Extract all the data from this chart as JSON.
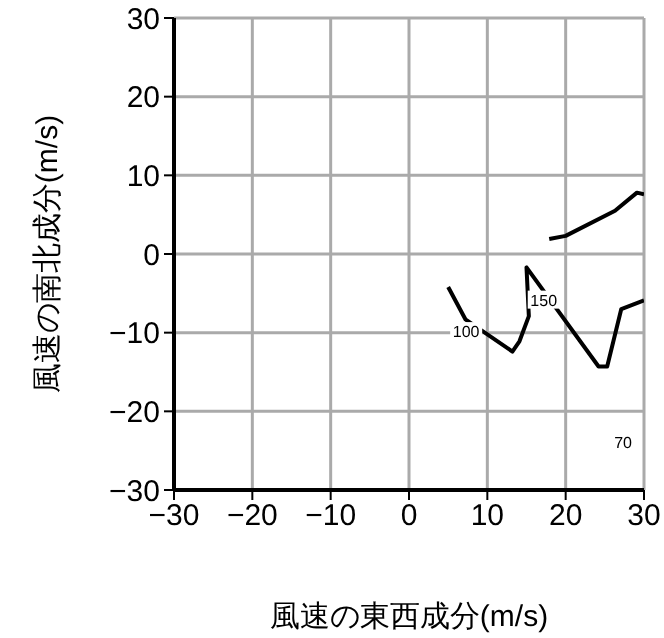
{
  "chart_data": {
    "type": "line",
    "xlabel": "風速の東西成分(m/s)",
    "ylabel": "風速の南北成分(m/s)",
    "xlim": [
      -30,
      30
    ],
    "ylim": [
      -30,
      30
    ],
    "xticks": [
      -30,
      -20,
      -10,
      0,
      10,
      20,
      30
    ],
    "yticks": [
      -30,
      -20,
      -10,
      0,
      10,
      20,
      30
    ],
    "grid": true,
    "line_style": "solid",
    "marker": "none",
    "series": [
      {
        "color": "#000000",
        "x": [
          17.9,
          20,
          26.3,
          29.1,
          30
        ],
        "values": [
          1.9,
          2.3,
          5.5,
          7.8,
          7.6
        ]
      },
      {
        "color": "#000000",
        "x": [
          5,
          7.2,
          13.2,
          14.1,
          15.3,
          15,
          24.2,
          25.3,
          27.1,
          30
        ],
        "values": [
          -4.2,
          -8.3,
          -12.4,
          -11.1,
          -7.9,
          -1.7,
          -14.3,
          -14.3,
          -7,
          -5.9
        ]
      }
    ],
    "annotations": [
      {
        "text": "100",
        "x": 7.3,
        "y": -9.8
      },
      {
        "text": "150",
        "x": 17.2,
        "y": -5.8
      },
      "70"
    ]
  }
}
